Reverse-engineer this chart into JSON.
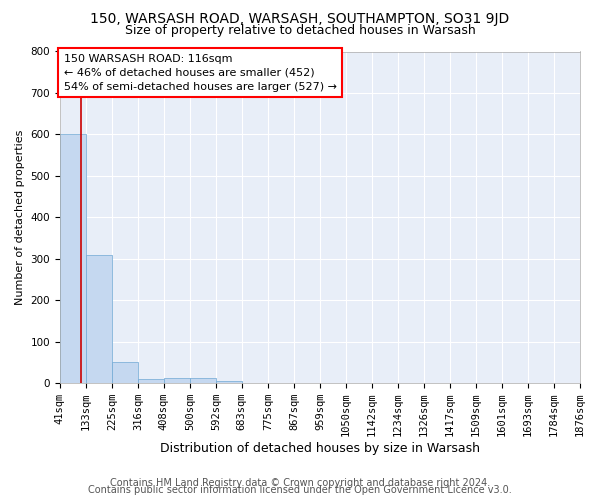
{
  "title1": "150, WARSASH ROAD, WARSASH, SOUTHAMPTON, SO31 9JD",
  "title2": "Size of property relative to detached houses in Warsash",
  "xlabel": "Distribution of detached houses by size in Warsash",
  "ylabel": "Number of detached properties",
  "bin_edges": [
    41,
    133,
    225,
    316,
    408,
    500,
    592,
    683,
    775,
    867,
    959,
    1050,
    1142,
    1234,
    1326,
    1417,
    1509,
    1601,
    1693,
    1784,
    1876
  ],
  "bar_heights": [
    600,
    310,
    50,
    10,
    12,
    12,
    5,
    0,
    0,
    0,
    0,
    0,
    0,
    0,
    0,
    0,
    0,
    0,
    0,
    0
  ],
  "bar_color": "#c5d8f0",
  "bar_edgecolor": "#6fa8d4",
  "property_line_x": 116,
  "property_line_color": "#cc0000",
  "ylim": [
    0,
    800
  ],
  "yticks": [
    0,
    100,
    200,
    300,
    400,
    500,
    600,
    700,
    800
  ],
  "annotation_box_text": "150 WARSASH ROAD: 116sqm\n← 46% of detached houses are smaller (452)\n54% of semi-detached houses are larger (527) →",
  "bg_color": "#ffffff",
  "plot_bg_color": "#e8eef8",
  "grid_color": "#ffffff",
  "footer1": "Contains HM Land Registry data © Crown copyright and database right 2024.",
  "footer2": "Contains public sector information licensed under the Open Government Licence v3.0.",
  "title1_fontsize": 10,
  "title2_fontsize": 9,
  "xlabel_fontsize": 9,
  "ylabel_fontsize": 8,
  "tick_fontsize": 7.5,
  "annotation_fontsize": 8,
  "footer_fontsize": 7
}
